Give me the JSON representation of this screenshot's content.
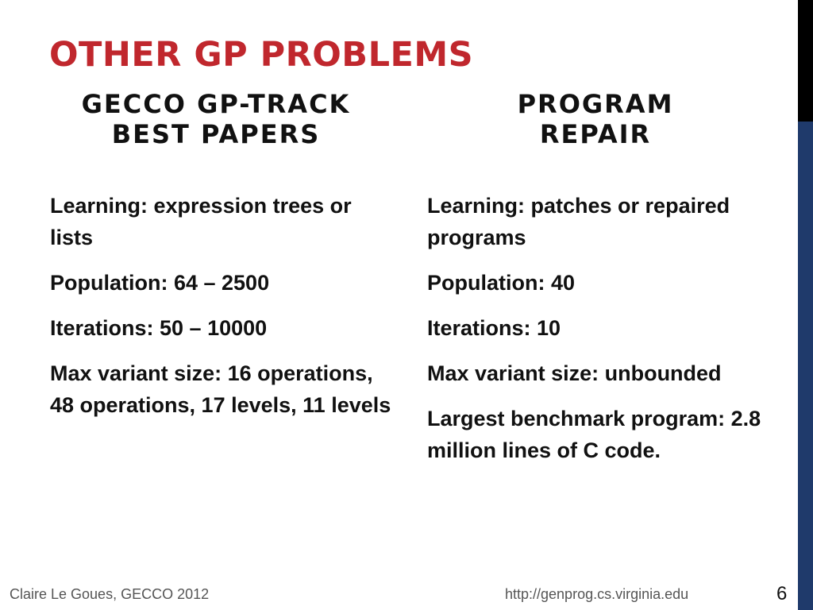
{
  "slide": {
    "title": "OTHER GP PROBLEMS"
  },
  "left_column": {
    "heading_line1": "GECCO GP-TRACK",
    "heading_line2": "BEST PAPERS",
    "items": [
      "Learning: expression trees or lists",
      "Population: 64 – 2500",
      "Iterations: 50 – 10000",
      "Max variant size: 16 operations, 48 operations, 17 levels, 11 levels"
    ]
  },
  "right_column": {
    "heading_line1": "PROGRAM",
    "heading_line2": "REPAIR",
    "items": [
      "Learning: patches or repaired programs",
      "Population: 40",
      "Iterations: 10",
      "Max variant size: unbounded",
      "Largest benchmark program: 2.8 million lines of C code."
    ]
  },
  "footer": {
    "author": "Claire Le Goues, GECCO 2012",
    "url": "http://genprog.cs.virginia.edu",
    "page_number": "6"
  },
  "colors": {
    "title": "#c0272d",
    "side_bar_top": "#000000",
    "side_bar_bottom": "#1f3a6b",
    "footer_text": "#555555"
  }
}
